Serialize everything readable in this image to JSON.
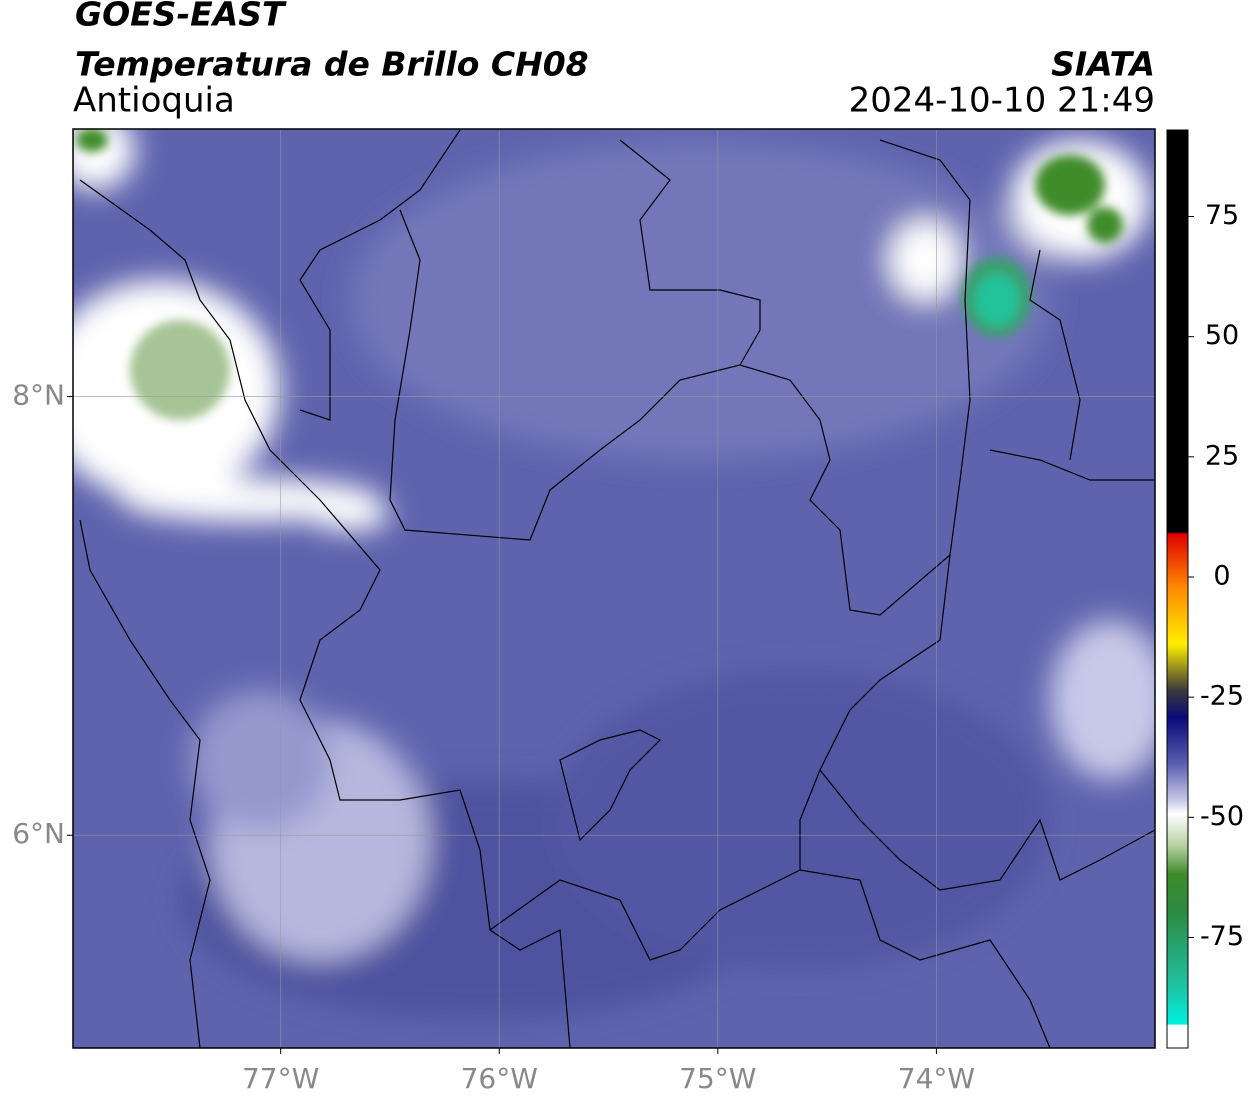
{
  "header": {
    "title": "GOES-EAST",
    "subtitle": "Temperatura de Brillo CH08",
    "region": "Antioquia",
    "source": "SIATA",
    "datetime": "2024-10-10 21:49"
  },
  "map": {
    "xlim": [
      -77.95,
      -73.0
    ],
    "ylim": [
      5.03,
      9.22
    ],
    "xticks": [
      {
        "value": -77,
        "label": "77°W"
      },
      {
        "value": -76,
        "label": "76°W"
      },
      {
        "value": -75,
        "label": "75°W"
      },
      {
        "value": -74,
        "label": "74°W"
      }
    ],
    "yticks": [
      {
        "value": 8,
        "label": "8°N"
      },
      {
        "value": 6,
        "label": "6°N"
      }
    ],
    "grid": true
  },
  "colorbar": {
    "clim": [
      -98,
      93
    ],
    "ticks": [
      75,
      50,
      25,
      0,
      -25,
      -50,
      -75
    ]
  }
}
